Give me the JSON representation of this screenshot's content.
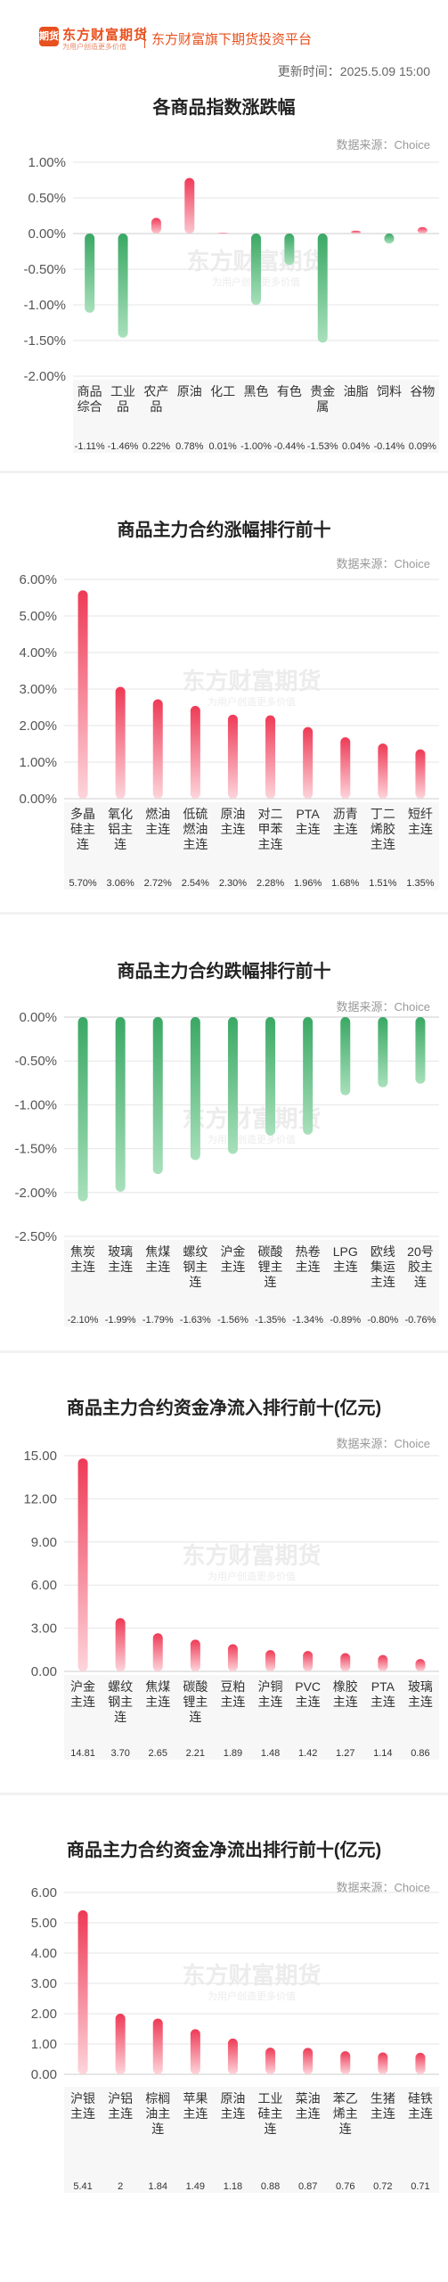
{
  "header": {
    "logo_text": "期货",
    "brand_name": "东方财富期货",
    "brand_slogan": "为用户创造更多价值",
    "platform_name": "东方财富旗下期货投资平台",
    "update_time": "更新时间：2025.5.09 15:00"
  },
  "watermark": {
    "brand": "东方财富期货",
    "slogan": "为用户创造更多价值"
  },
  "colors": {
    "up": "#f0506a",
    "down": "#4cb872",
    "grid": "#e6e6e6",
    "axis": "#999999"
  },
  "charts": [
    {
      "title": "各商品指数涨跌幅",
      "source": "数据来源：Choice"
    },
    {
      "title": "商品主力合约涨幅排行前十",
      "source": "数据来源：Choice"
    },
    {
      "title": "商品主力合约跌幅排行前十",
      "source": "数据来源：Choice"
    },
    {
      "title": "商品主力合约资金净流入排行前十(亿元)",
      "source": "数据来源：Choice"
    },
    {
      "title": "商品主力合约资金净流出排行前十(亿元)",
      "source": "数据来源：Choice"
    }
  ],
  "chart_data": [
    {
      "type": "bar",
      "title": "各商品指数涨跌幅",
      "categories": [
        "商品综合",
        "工业品",
        "农产品",
        "原油",
        "化工",
        "黑色",
        "有色",
        "贵金属",
        "油脂",
        "饲料",
        "谷物"
      ],
      "values": [
        -1.11,
        -1.46,
        0.22,
        0.78,
        0.01,
        -1.0,
        -0.44,
        -1.53,
        0.04,
        -0.14,
        0.09
      ],
      "value_labels": [
        "-1.11%",
        "-1.46%",
        "0.22%",
        "0.78%",
        "0.01%",
        "-1.00%",
        "-0.44%",
        "-1.53%",
        "0.04%",
        "-0.14%",
        "0.09%"
      ],
      "ylim": [
        -2.0,
        1.0
      ],
      "yticks": [
        "1.00%",
        "0.50%",
        "0.00%",
        "-0.50%",
        "-1.00%",
        "-1.50%",
        "-2.00%"
      ],
      "yticks_values": [
        1.0,
        0.5,
        0,
        -0.5,
        -1.0,
        -1.5,
        -2.0
      ],
      "grid": true
    },
    {
      "type": "bar",
      "title": "商品主力合约涨幅排行前十",
      "categories": [
        "多晶硅主连",
        "氧化铝主连",
        "燃油主连",
        "低硫燃油主连",
        "原油主连",
        "对二甲苯主连",
        "PTA主连",
        "沥青主连",
        "丁二烯胶主连",
        "短纤主连"
      ],
      "values": [
        5.7,
        3.06,
        2.72,
        2.54,
        2.3,
        2.28,
        1.96,
        1.68,
        1.51,
        1.35
      ],
      "value_labels": [
        "5.70%",
        "3.06%",
        "2.72%",
        "2.54%",
        "2.30%",
        "2.28%",
        "1.96%",
        "1.68%",
        "1.51%",
        "1.35%"
      ],
      "ylim": [
        0,
        6.0
      ],
      "yticks": [
        "6.00%",
        "5.00%",
        "4.00%",
        "3.00%",
        "2.00%",
        "1.00%",
        "0.00%"
      ],
      "yticks_values": [
        6,
        5,
        4,
        3,
        2,
        1,
        0
      ],
      "grid": true
    },
    {
      "type": "bar",
      "title": "商品主力合约跌幅排行前十",
      "categories": [
        "焦炭主连",
        "玻璃主连",
        "焦煤主连",
        "螺纹钢主连",
        "沪金主连",
        "碳酸锂主连",
        "热卷主连",
        "LPG主连",
        "欧线集运主连",
        "20号胶主连"
      ],
      "values": [
        -2.1,
        -1.99,
        -1.79,
        -1.63,
        -1.56,
        -1.35,
        -1.34,
        -0.89,
        -0.8,
        -0.76
      ],
      "value_labels": [
        "-2.10%",
        "-1.99%",
        "-1.79%",
        "-1.63%",
        "-1.56%",
        "-1.35%",
        "-1.34%",
        "-0.89%",
        "-0.80%",
        "-0.76%"
      ],
      "ylim": [
        -2.5,
        0
      ],
      "yticks": [
        "0.00%",
        "-0.50%",
        "-1.00%",
        "-1.50%",
        "-2.00%",
        "-2.50%"
      ],
      "yticks_values": [
        0,
        -0.5,
        -1.0,
        -1.5,
        -2.0,
        -2.5
      ],
      "grid": true
    },
    {
      "type": "bar",
      "title": "商品主力合约资金净流入排行前十(亿元)",
      "categories": [
        "沪金主连",
        "螺纹钢主连",
        "焦煤主连",
        "碳酸锂主连",
        "豆粕主连",
        "沪铜主连",
        "PVC主连",
        "橡胶主连",
        "PTA主连",
        "玻璃主连"
      ],
      "values": [
        14.81,
        3.7,
        2.65,
        2.21,
        1.89,
        1.48,
        1.42,
        1.27,
        1.14,
        0.86
      ],
      "value_labels": [
        "14.81",
        "3.70",
        "2.65",
        "2.21",
        "1.89",
        "1.48",
        "1.42",
        "1.27",
        "1.14",
        "0.86"
      ],
      "ylim": [
        0,
        15.0
      ],
      "yticks": [
        "15.00",
        "12.00",
        "9.00",
        "6.00",
        "3.00",
        "0.00"
      ],
      "yticks_values": [
        15,
        12,
        9,
        6,
        3,
        0
      ],
      "grid": true
    },
    {
      "type": "bar",
      "title": "商品主力合约资金净流出排行前十(亿元)",
      "categories": [
        "沪银主连",
        "沪铝主连",
        "棕榈油主连",
        "苹果主连",
        "原油主连",
        "工业硅主连",
        "菜油主连",
        "苯乙烯主连",
        "生猪主连",
        "硅铁主连"
      ],
      "values": [
        5.41,
        2,
        1.84,
        1.49,
        1.18,
        0.88,
        0.87,
        0.76,
        0.72,
        0.71
      ],
      "value_labels": [
        "5.41",
        "2",
        "1.84",
        "1.49",
        "1.18",
        "0.88",
        "0.87",
        "0.76",
        "0.72",
        "0.71"
      ],
      "ylim": [
        0,
        6.0
      ],
      "yticks": [
        "6.00",
        "5.00",
        "4.00",
        "3.00",
        "2.00",
        "1.00",
        "0.00"
      ],
      "yticks_values": [
        6,
        5,
        4,
        3,
        2,
        1,
        0
      ],
      "grid": true
    }
  ]
}
